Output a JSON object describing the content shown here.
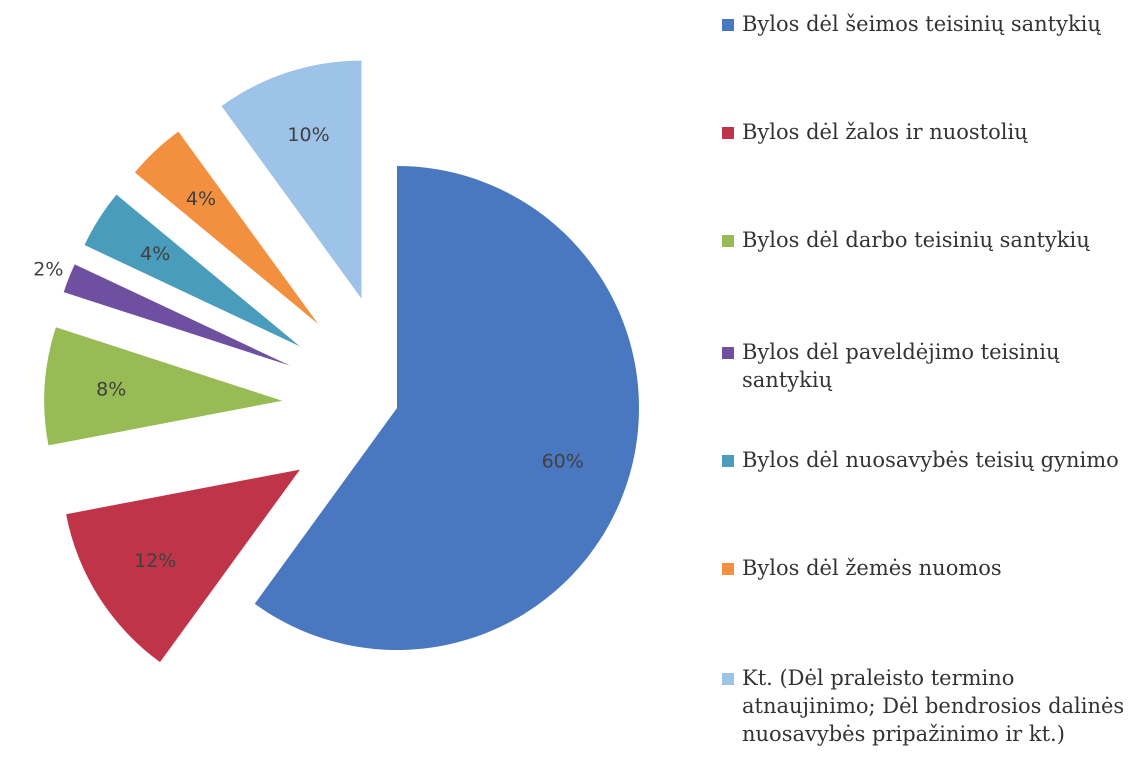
{
  "chart_data": {
    "type": "pie",
    "categories": [
      "Bylos dėl šeimos teisinių santykių",
      "Bylos dėl žalos ir nuostolių",
      "Bylos dėl darbo teisinių santykių",
      "Bylos dėl paveldėjimo teisinių santykių",
      "Bylos dėl nuosavybės teisių gynimo",
      "Bylos dėl žemės nuomos",
      "Kt. (Dėl praleisto termino atnaujinimo; Dėl bendrosios dalinės nuosavybės pripažinimo ir kt.)"
    ],
    "values": [
      60,
      12,
      8,
      2,
      4,
      4,
      10
    ],
    "value_labels": [
      "60%",
      "12%",
      "8%",
      "2%",
      "4%",
      "4%",
      "10%"
    ],
    "colors": [
      "#4a78c0",
      "#c0344a",
      "#98bb55",
      "#6f4fa0",
      "#4a9cbc",
      "#f39040",
      "#9dc3e8"
    ],
    "legend": "right"
  }
}
